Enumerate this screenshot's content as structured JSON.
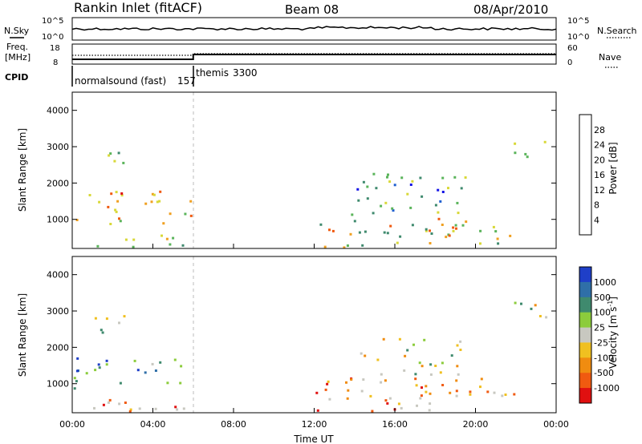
{
  "header": {
    "station": "Rankin Inlet (fitACF)",
    "beam": "Beam 08",
    "date": "08/Apr/2010"
  },
  "params_panel": {
    "nsky_label": "N.Sky",
    "nsky_ticks": [
      "10^5",
      "10^0"
    ],
    "nsearch_label": "N.Search",
    "nsearch_ticks": [
      "10^5",
      "10^0"
    ],
    "freq_label": "Freq.",
    "freq_unit": "[MHz]",
    "freq_ticks": [
      "18",
      "8"
    ],
    "nave_label": "Nave",
    "nave_ticks": [
      "60",
      "0"
    ],
    "cpid_label": "CPID",
    "cpid_segments": [
      {
        "name": "normalsound (fast)",
        "id": "157",
        "start_hour": 0,
        "end_hour": 6
      },
      {
        "name": "themis",
        "id": "3300",
        "start_hour": 6,
        "end_hour": 24
      }
    ]
  },
  "chart_data": [
    {
      "type": "heatmap",
      "panel": "power",
      "ylabel": "Slant Range [km]",
      "y_ticks": [
        1000,
        2000,
        3000,
        4000
      ],
      "ylim": [
        200,
        4500
      ],
      "xlim": [
        0,
        24
      ],
      "colorbar_label": "Power [dB]",
      "colorbar_ticks": [
        "4",
        "8",
        "12",
        "16",
        "20",
        "24",
        "28"
      ],
      "colorbar_colors": [
        "#1414e6",
        "#1f5fd0",
        "#3f8a6e",
        "#5ab45a",
        "#d8d838",
        "#f0a020",
        "#f05a10",
        "#e01010"
      ],
      "clusters": [
        {
          "t0": 0.0,
          "t1": 6.0,
          "r0": 900,
          "r1": 1800,
          "level": 0.65
        },
        {
          "t0": 0.0,
          "t1": 6.0,
          "r0": 250,
          "r1": 600,
          "level": 0.55
        },
        {
          "t0": 0.9,
          "t1": 2.6,
          "r0": 2300,
          "r1": 3000,
          "level": 0.45
        },
        {
          "t0": 12.0,
          "t1": 20.5,
          "r0": 250,
          "r1": 1200,
          "level": 0.55
        },
        {
          "t0": 14.0,
          "t1": 19.5,
          "r0": 1200,
          "r1": 2300,
          "level": 0.35
        },
        {
          "t0": 21.8,
          "t1": 23.5,
          "r0": 2700,
          "r1": 3300,
          "level": 0.45
        },
        {
          "t0": 20.5,
          "t1": 22.0,
          "r0": 200,
          "r1": 900,
          "level": 0.5
        }
      ]
    },
    {
      "type": "heatmap",
      "panel": "velocity",
      "ylabel": "Slant Range [km]",
      "y_ticks": [
        1000,
        2000,
        3000,
        4000
      ],
      "ylim": [
        200,
        4500
      ],
      "xlim": [
        0,
        24
      ],
      "xlabel": "Time UT",
      "x_ticks": [
        "00:00",
        "04:00",
        "08:00",
        "12:00",
        "16:00",
        "20:00",
        "00:00"
      ],
      "colorbar_label": "Velocity [m s^-1]",
      "colorbar_ticks": [
        "1000",
        "500",
        "100",
        "25",
        "-25",
        "-100",
        "-500",
        "-1000"
      ],
      "colorbar_colors": [
        "#1f3fc8",
        "#2f6fa8",
        "#3f8a6e",
        "#8ccc3c",
        "#c8c8c0",
        "#f0c020",
        "#f08c10",
        "#f05a10",
        "#e01010"
      ],
      "clusters": [
        {
          "t0": 0.0,
          "t1": 6.0,
          "r0": 900,
          "r1": 1800,
          "level": 0.3
        },
        {
          "t0": 0.0,
          "t1": 6.0,
          "r0": 250,
          "r1": 600,
          "level": 0.7
        },
        {
          "t0": 0.9,
          "t1": 2.6,
          "r0": 2300,
          "r1": 3000,
          "level": 0.5
        },
        {
          "t0": 12.0,
          "t1": 20.5,
          "r0": 250,
          "r1": 1200,
          "level": 0.7
        },
        {
          "t0": 14.0,
          "t1": 19.5,
          "r0": 1200,
          "r1": 2300,
          "level": 0.5
        },
        {
          "t0": 21.8,
          "t1": 23.5,
          "r0": 2700,
          "r1": 3300,
          "level": 0.5
        },
        {
          "t0": 20.5,
          "t1": 22.0,
          "r0": 200,
          "r1": 900,
          "level": 0.65
        }
      ]
    }
  ]
}
